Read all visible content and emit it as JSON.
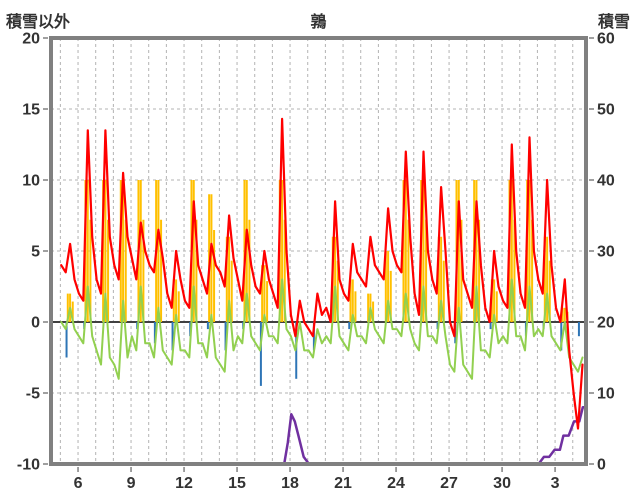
{
  "header": {
    "left_axis_title": "積雪以外",
    "title": "鶉",
    "right_axis_title": "積雪"
  },
  "colors": {
    "grid": "#b3b3b3",
    "frame": "#808080",
    "zero_line": "#404040",
    "text": "#333333",
    "red": "#ff0000",
    "green": "#92d050",
    "orange": "#ffc000",
    "blue": "#2e75b6",
    "purple": "#7030a0"
  },
  "chart_data": {
    "type": "line",
    "title": "鶉",
    "left_axis": {
      "label": "積雪以外",
      "min": -10,
      "max": 20,
      "ticks": [
        20,
        15,
        10,
        5,
        0,
        -5,
        -10
      ]
    },
    "right_axis": {
      "label": "積雪",
      "min": 0,
      "max": 60,
      "ticks": [
        60,
        50,
        40,
        30,
        20,
        10,
        0
      ]
    },
    "x_axis": {
      "domain": [
        0,
        30.28
      ],
      "day_start_offset": 0.53,
      "tick_positions": [
        1.53,
        4.53,
        7.53,
        10.53,
        13.53,
        16.53,
        19.53,
        22.53,
        25.53,
        28.53
      ],
      "tick_labels": [
        "6",
        "9",
        "12",
        "15",
        "18",
        "21",
        "24",
        "27",
        "30",
        "3"
      ],
      "gridline_every_day": true
    },
    "sample_phases": [
      0.05,
      0.3,
      0.55,
      0.8
    ],
    "grid": "dashed",
    "legend": "none",
    "series": [
      {
        "name": "orange-bars",
        "type": "bar",
        "axis": "left",
        "color": "#ffc000",
        "offset": 0.55,
        "cluster": true,
        "values": [
          2,
          10,
          10,
          10,
          10,
          10,
          3,
          10,
          9,
          6,
          10,
          4,
          10,
          0,
          0,
          6,
          3,
          2,
          5,
          10,
          10,
          6,
          10,
          10,
          3,
          10,
          10,
          6,
          1,
          0
        ]
      },
      {
        "name": "blue-bars",
        "type": "bar",
        "axis": "left",
        "color": "#2e75b6",
        "offset": 0.35,
        "cluster": false,
        "values": [
          -2.5,
          -0.5,
          0,
          0,
          -0.5,
          -1.5,
          -2,
          -1,
          -0.5,
          -2,
          -0.5,
          -4.5,
          0,
          -4,
          -2,
          0,
          -0.5,
          0,
          0,
          0,
          0,
          -0.5,
          -1.5,
          0,
          -0.5,
          0,
          -1,
          -0.5,
          -2,
          -1
        ]
      },
      {
        "name": "purple-line",
        "type": "line",
        "axis": "right",
        "color": "#7030a0",
        "width": 2.5,
        "points": [
          [
            12.8,
            0
          ],
          [
            13.2,
            0
          ],
          [
            13.4,
            3
          ],
          [
            13.6,
            7
          ],
          [
            13.8,
            6
          ],
          [
            14.0,
            4
          ],
          [
            14.3,
            1
          ],
          [
            14.6,
            0
          ],
          [
            27.6,
            0
          ],
          [
            27.9,
            1
          ],
          [
            28.2,
            1
          ],
          [
            28.5,
            2
          ],
          [
            28.8,
            2
          ],
          [
            29.0,
            4
          ],
          [
            29.3,
            4
          ],
          [
            29.6,
            6
          ],
          [
            29.9,
            6
          ],
          [
            30.1,
            8
          ],
          [
            30.28,
            8
          ]
        ]
      },
      {
        "name": "green-line",
        "type": "line",
        "axis": "left",
        "color": "#92d050",
        "width": 2,
        "values": [
          0,
          -0.5,
          1,
          -0.5,
          -1,
          -1.5,
          2.5,
          -1,
          -2,
          -3,
          2,
          -2.5,
          -3,
          -4,
          1.5,
          -2.5,
          -1,
          -2,
          2.5,
          -1.5,
          -1.5,
          -2.5,
          1,
          -2,
          -2.5,
          -3,
          0.5,
          -2,
          -2,
          -2.5,
          2.5,
          -1.5,
          -1.5,
          -2.5,
          0.5,
          -2.5,
          -3,
          -3.5,
          1.5,
          -2,
          -1,
          -1.5,
          2,
          -1,
          -1.5,
          -2,
          0.5,
          -1,
          -1,
          -1.5,
          3,
          -0.5,
          -1,
          -2,
          0,
          -2,
          -2,
          -2.5,
          -0.5,
          -1.5,
          -1,
          -1.5,
          2.5,
          -1,
          -1.5,
          -2,
          0.5,
          -1,
          -1,
          -1.5,
          1,
          -0.5,
          -1,
          -1.5,
          1.5,
          -0.5,
          -0.5,
          -1,
          2,
          -0.5,
          -1.5,
          -2,
          2.5,
          -1,
          -1,
          -1.5,
          1.5,
          -1,
          -3,
          -3.5,
          1,
          -3,
          -3.5,
          -4,
          2.5,
          -2,
          -2,
          -2.5,
          0.5,
          -1.5,
          -1,
          -1.5,
          3,
          -1,
          -1,
          -2,
          2.5,
          -1,
          -0.5,
          -1,
          2,
          -1,
          -1.5,
          -2,
          0,
          -2.5,
          -3,
          -3.5,
          -2.5,
          -3
        ]
      },
      {
        "name": "red-line",
        "type": "line",
        "axis": "left",
        "color": "#ff0000",
        "width": 2.2,
        "values": [
          4,
          3.5,
          5.5,
          3,
          2,
          1.5,
          13.5,
          6,
          3,
          2,
          13.5,
          6,
          4,
          3,
          10.5,
          6,
          4.5,
          3,
          7,
          5,
          4,
          3.5,
          6.5,
          4.5,
          2,
          1,
          5,
          3,
          1.5,
          1,
          8.5,
          4,
          3,
          2,
          5.5,
          4,
          3.5,
          2.5,
          7.5,
          4.5,
          3,
          1.5,
          6.5,
          4,
          2.5,
          2,
          5,
          3,
          2,
          1,
          14.3,
          5,
          0.5,
          -1,
          1.5,
          0,
          -0.5,
          -1,
          2,
          0.5,
          1,
          0,
          8.5,
          3,
          2,
          1.5,
          5.5,
          3.5,
          3,
          2.5,
          6,
          4,
          3.5,
          3,
          8,
          5,
          4,
          3.5,
          12,
          6,
          2,
          0.5,
          12,
          5,
          3,
          2,
          9.5,
          5,
          0,
          -1,
          8.5,
          3,
          2,
          1,
          8.5,
          4,
          1,
          0,
          5,
          2.5,
          1.5,
          1,
          12.5,
          5,
          2,
          1,
          13,
          5,
          3,
          2,
          10,
          4,
          1,
          0,
          3,
          -2,
          -5,
          -7.5,
          -3,
          -2
        ]
      }
    ]
  }
}
